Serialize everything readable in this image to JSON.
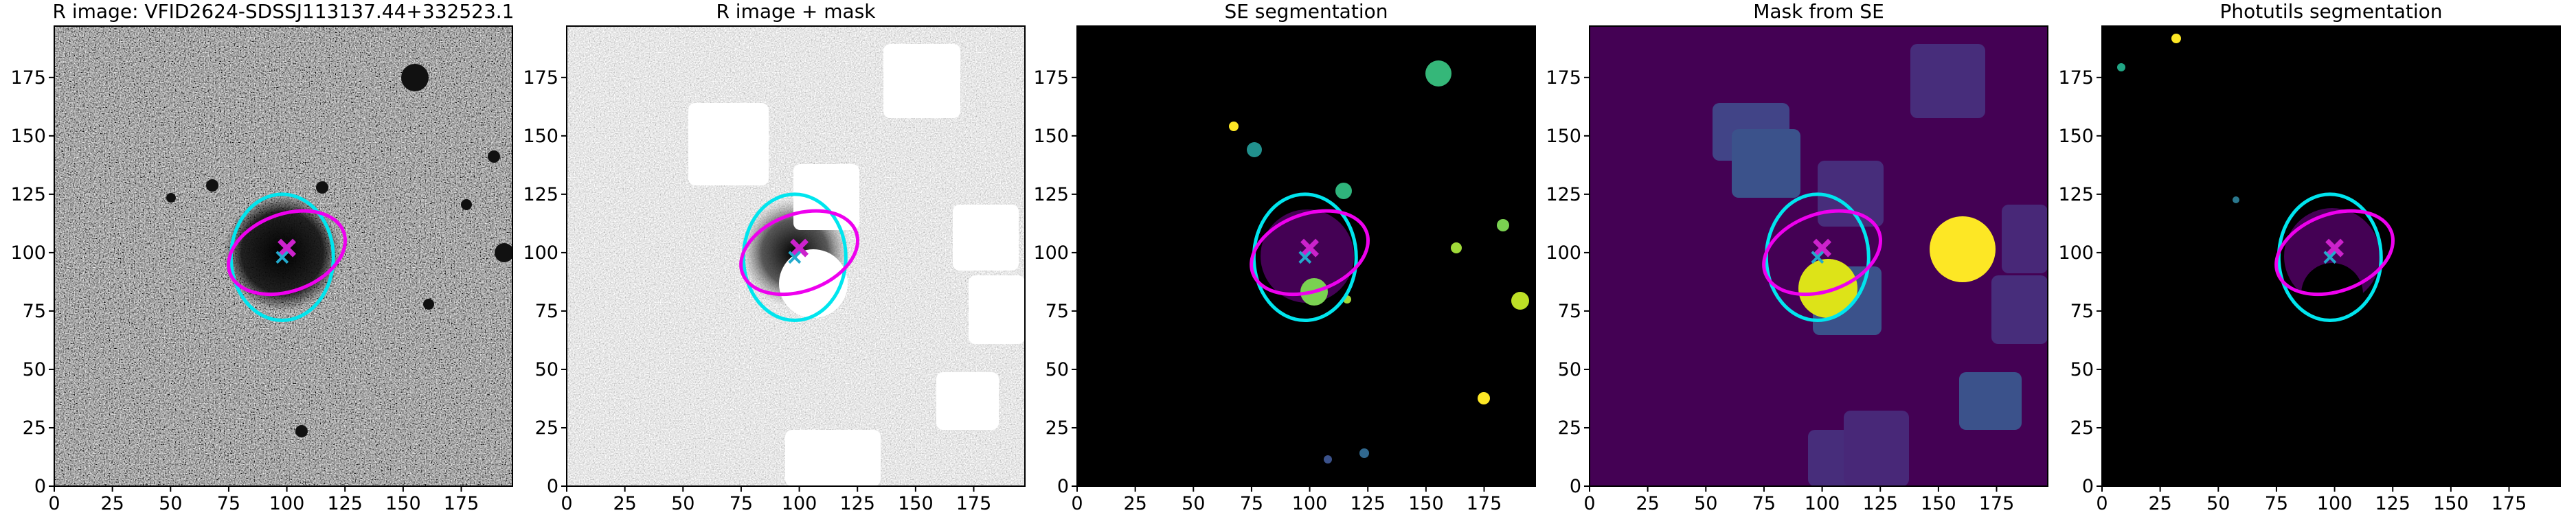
{
  "chart_data": [
    {
      "type": "image",
      "title": "R image: VFID2624-SDSSJ113137.44+332523.1",
      "xlim": [
        0,
        197
      ],
      "ylim": [
        0,
        197
      ],
      "xticks": [
        0,
        25,
        50,
        75,
        100,
        125,
        150,
        175
      ],
      "yticks": [
        0,
        25,
        50,
        75,
        100,
        125,
        150,
        175
      ],
      "ellipses": [
        {
          "color": "#00e5ee",
          "cx": 98,
          "cy": 98,
          "width": 44,
          "height": 54,
          "angle": 0
        },
        {
          "color": "#ee00ee",
          "cx": 100,
          "cy": 100,
          "width": 52,
          "height": 33,
          "angle": 20
        }
      ],
      "markers": [
        {
          "color": "#cc22cc",
          "marker": "X",
          "x": 100,
          "y": 102
        },
        {
          "color": "#22aacc",
          "marker": "x",
          "x": 98,
          "y": 98
        }
      ]
    },
    {
      "type": "image",
      "title": "R image + mask",
      "xlim": [
        0,
        197
      ],
      "ylim": [
        0,
        197
      ],
      "xticks": [
        0,
        25,
        50,
        75,
        100,
        125,
        150,
        175
      ],
      "yticks": [
        0,
        25,
        50,
        75,
        100,
        125,
        150,
        175
      ],
      "ellipses": [
        {
          "color": "#00e5ee",
          "cx": 98,
          "cy": 98,
          "width": 44,
          "height": 54,
          "angle": 0
        },
        {
          "color": "#ee00ee",
          "cx": 100,
          "cy": 100,
          "width": 52,
          "height": 33,
          "angle": 20
        }
      ],
      "markers": [
        {
          "color": "#cc22cc",
          "marker": "X",
          "x": 100,
          "y": 102
        },
        {
          "color": "#22aacc",
          "marker": "x",
          "x": 98,
          "y": 98
        }
      ]
    },
    {
      "type": "image",
      "title": "SE segmentation",
      "xlim": [
        0,
        197
      ],
      "ylim": [
        0,
        197
      ],
      "xticks": [
        0,
        25,
        50,
        75,
        100,
        125,
        150,
        175
      ],
      "yticks": [
        0,
        25,
        50,
        75,
        100,
        125,
        150,
        175
      ],
      "ellipses": [
        {
          "color": "#00e5ee",
          "cx": 98,
          "cy": 98,
          "width": 44,
          "height": 54,
          "angle": 0
        },
        {
          "color": "#ee00ee",
          "cx": 100,
          "cy": 100,
          "width": 52,
          "height": 33,
          "angle": 20
        }
      ],
      "markers": [
        {
          "color": "#cc22cc",
          "marker": "X",
          "x": 100,
          "y": 102
        },
        {
          "color": "#22aacc",
          "marker": "x",
          "x": 98,
          "y": 98
        }
      ]
    },
    {
      "type": "image",
      "title": "Mask from SE",
      "xlim": [
        0,
        197
      ],
      "ylim": [
        0,
        197
      ],
      "xticks": [
        0,
        25,
        50,
        75,
        100,
        125,
        150,
        175
      ],
      "yticks": [
        0,
        25,
        50,
        75,
        100,
        125,
        150,
        175
      ],
      "ellipses": [
        {
          "color": "#00e5ee",
          "cx": 98,
          "cy": 98,
          "width": 44,
          "height": 54,
          "angle": 0
        },
        {
          "color": "#ee00ee",
          "cx": 100,
          "cy": 100,
          "width": 52,
          "height": 33,
          "angle": 20
        }
      ],
      "markers": [
        {
          "color": "#cc22cc",
          "marker": "X",
          "x": 100,
          "y": 102
        },
        {
          "color": "#22aacc",
          "marker": "x",
          "x": 98,
          "y": 98
        }
      ]
    },
    {
      "type": "image",
      "title": "Photutils segmentation",
      "xlim": [
        0,
        197
      ],
      "ylim": [
        0,
        197
      ],
      "xticks": [
        0,
        25,
        50,
        75,
        100,
        125,
        150,
        175
      ],
      "yticks": [
        0,
        25,
        50,
        75,
        100,
        125,
        150,
        175
      ],
      "ellipses": [
        {
          "color": "#00e5ee",
          "cx": 98,
          "cy": 98,
          "width": 44,
          "height": 54,
          "angle": 0
        },
        {
          "color": "#ee00ee",
          "cx": 100,
          "cy": 100,
          "width": 52,
          "height": 33,
          "angle": 20
        }
      ],
      "markers": [
        {
          "color": "#cc22cc",
          "marker": "X",
          "x": 100,
          "y": 102
        },
        {
          "color": "#22aacc",
          "marker": "x",
          "x": 98,
          "y": 98
        }
      ]
    }
  ]
}
